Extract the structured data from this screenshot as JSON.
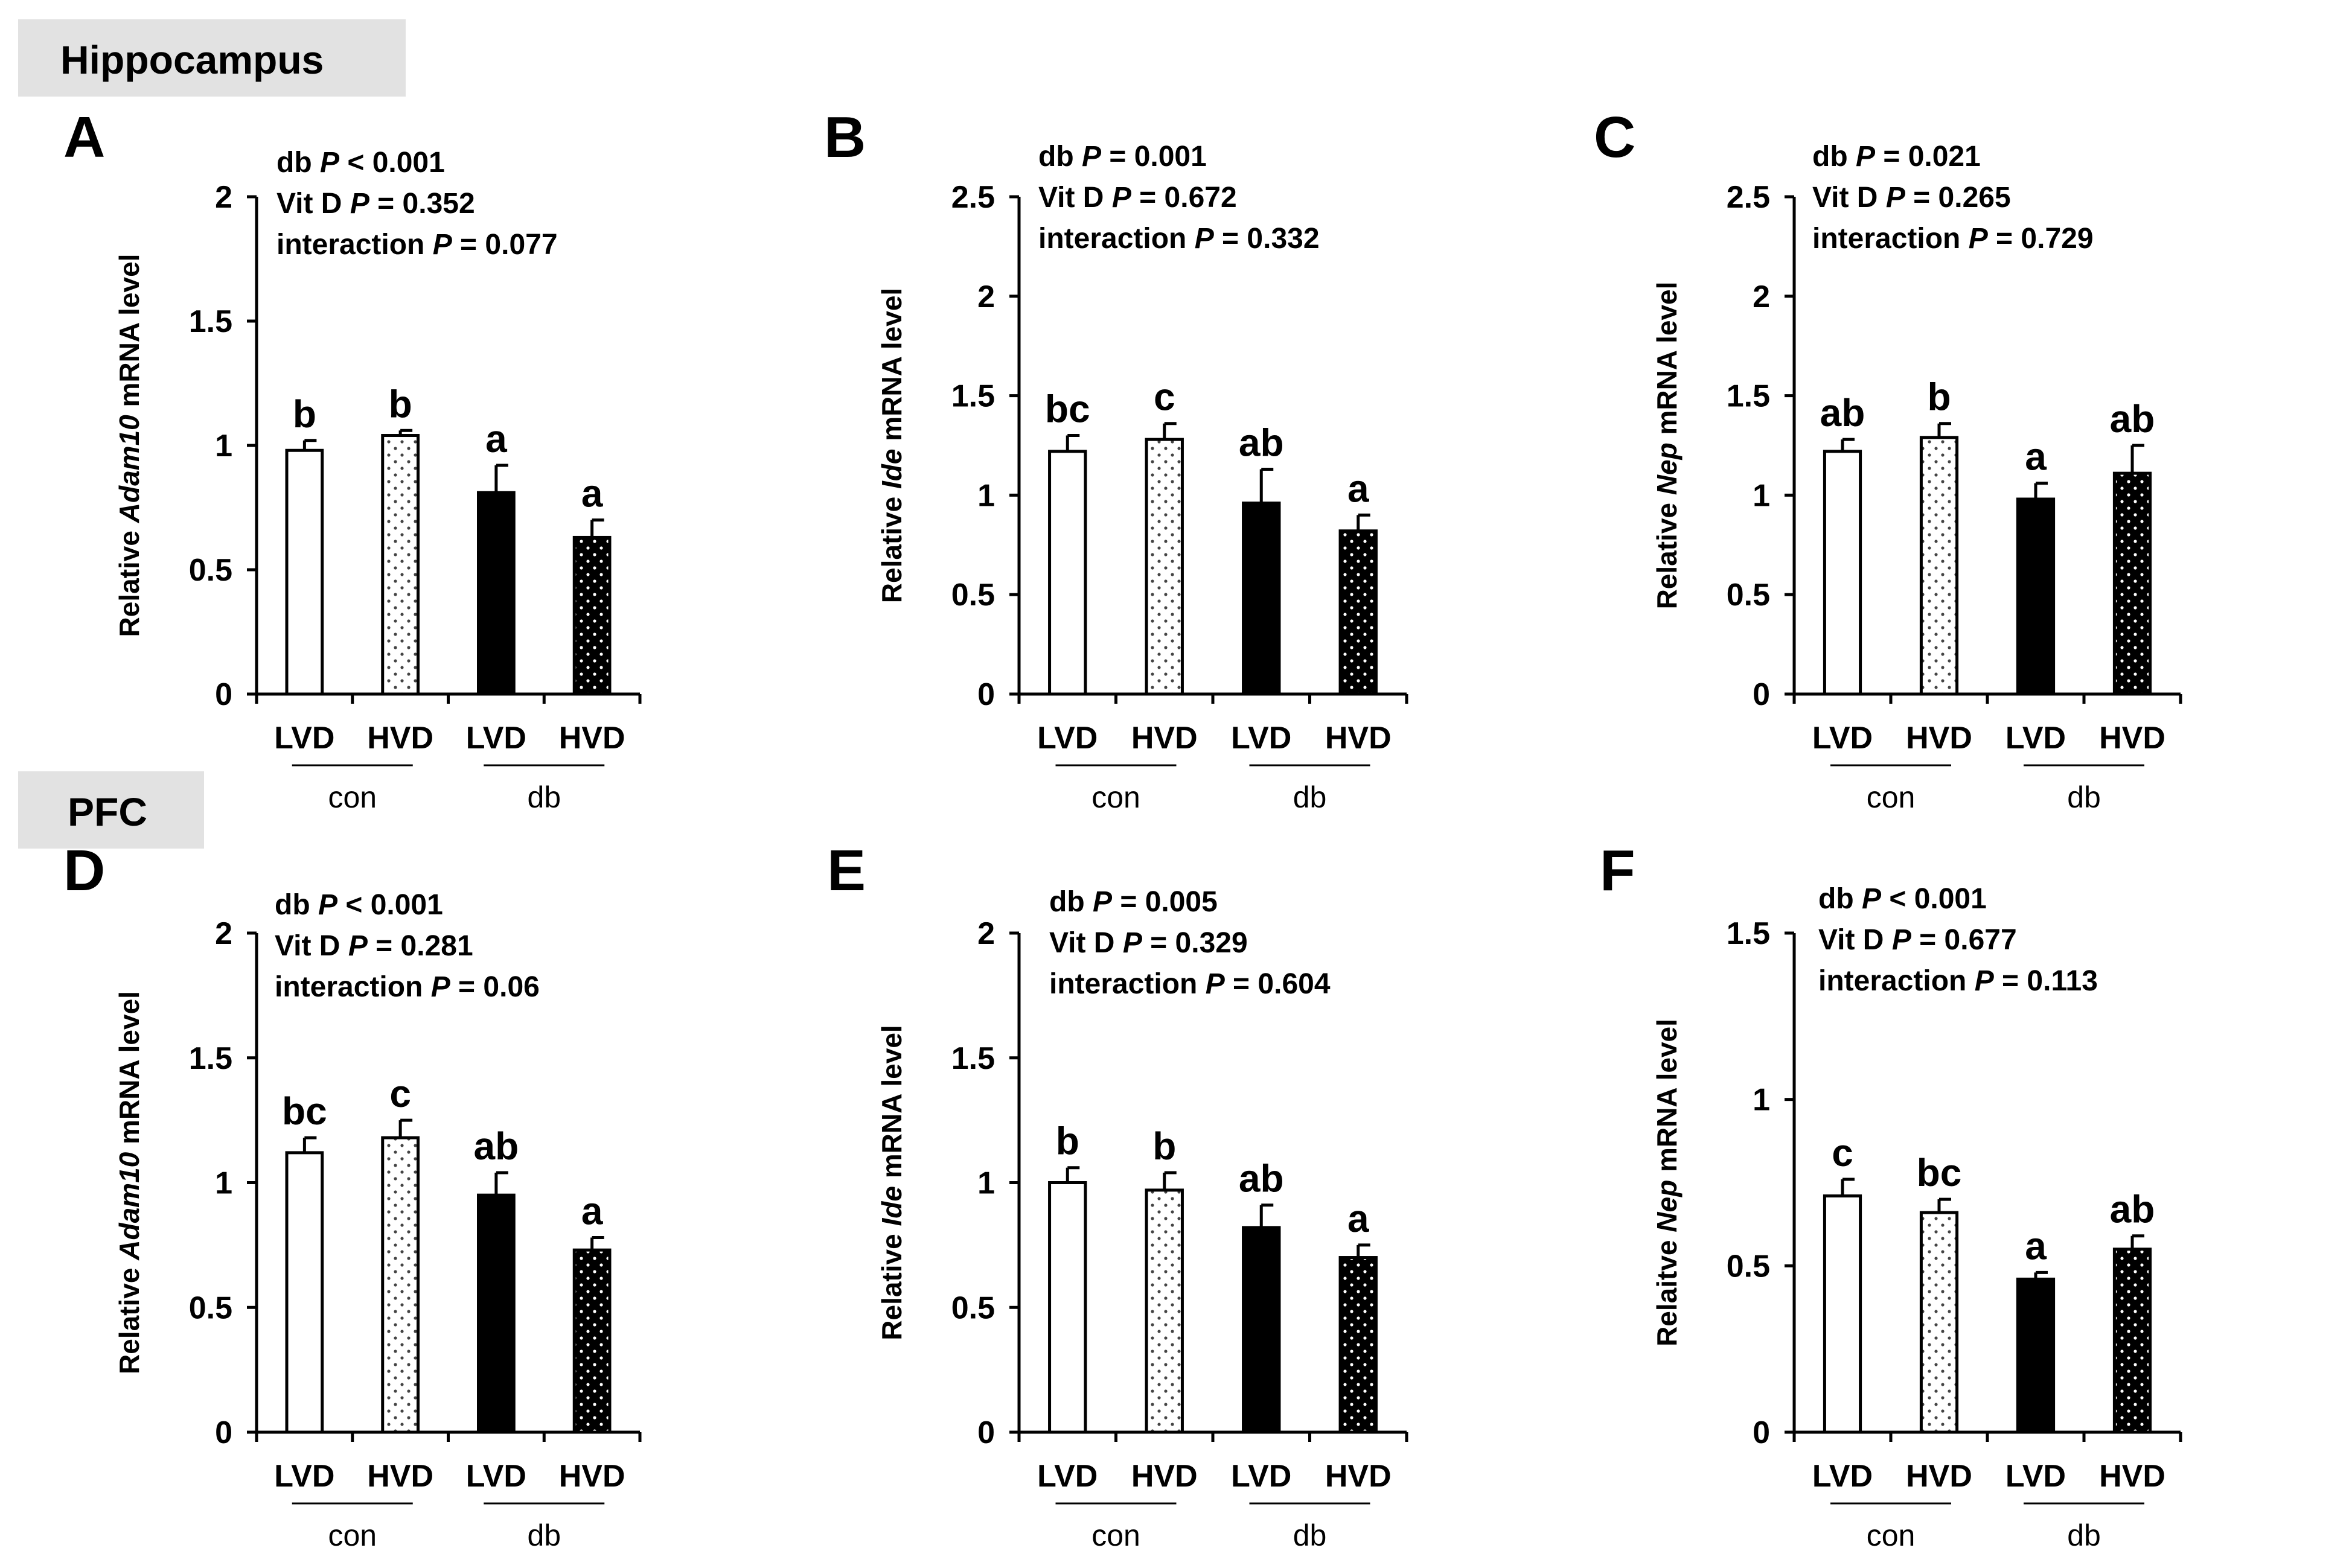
{
  "sections": [
    {
      "label": "Hippocampus"
    },
    {
      "label": "PFC"
    }
  ],
  "palette": {
    "bar_outline": "#000000",
    "bar_black": "#000000",
    "bar_white": "#ffffff",
    "section_bg": "#e2e2e2"
  },
  "chart_data": [
    {
      "type": "bar",
      "panel": "A",
      "ylabel_parts": [
        "Relative ",
        "Adam10",
        " mRNA level"
      ],
      "ylim": [
        0,
        2
      ],
      "yticks": [
        0,
        0.5,
        1,
        1.5,
        2
      ],
      "ytick_labels": [
        "0",
        "0.5",
        "1",
        "1.5",
        "2"
      ],
      "categories": [
        "LVD",
        "HVD",
        "LVD",
        "HVD"
      ],
      "groups": [
        {
          "label": "con"
        },
        {
          "label": "db"
        }
      ],
      "fills": [
        "white",
        "dotted-white",
        "black",
        "dotted-black"
      ],
      "values": [
        0.98,
        1.04,
        0.81,
        0.63
      ],
      "errors": [
        0.04,
        0.02,
        0.11,
        0.07
      ],
      "sig_letters": [
        "b",
        "b",
        "a",
        "a"
      ],
      "stats": [
        {
          "label": "db ",
          "p_symbol": "P",
          "rel": " < ",
          "value": "0.001"
        },
        {
          "label": "Vit D ",
          "p_symbol": "P",
          "rel": " = ",
          "value": "0.352"
        },
        {
          "label": "interaction ",
          "p_symbol": "P",
          "rel": " = ",
          "value": "0.077"
        }
      ]
    },
    {
      "type": "bar",
      "panel": "B",
      "ylabel_parts": [
        "Relative ",
        "Ide",
        " mRNA level"
      ],
      "ylim": [
        0,
        2.5
      ],
      "yticks": [
        0,
        0.5,
        1,
        1.5,
        2,
        2.5
      ],
      "ytick_labels": [
        "0",
        "0.5",
        "1",
        "1.5",
        "2",
        "2.5"
      ],
      "categories": [
        "LVD",
        "HVD",
        "LVD",
        "HVD"
      ],
      "groups": [
        {
          "label": "con"
        },
        {
          "label": "db"
        }
      ],
      "fills": [
        "white",
        "dotted-white",
        "black",
        "dotted-black"
      ],
      "values": [
        1.22,
        1.28,
        0.96,
        0.82
      ],
      "errors": [
        0.08,
        0.08,
        0.17,
        0.08
      ],
      "sig_letters": [
        "bc",
        "c",
        "ab",
        "a"
      ],
      "stats": [
        {
          "label": "db ",
          "p_symbol": "P",
          "rel": " = ",
          "value": "0.001"
        },
        {
          "label": "Vit D ",
          "p_symbol": "P",
          "rel": " = ",
          "value": "0.672"
        },
        {
          "label": "interaction ",
          "p_symbol": "P",
          "rel": " = ",
          "value": "0.332"
        }
      ]
    },
    {
      "type": "bar",
      "panel": "C",
      "ylabel_parts": [
        "Relative ",
        "Nep",
        " mRNA level"
      ],
      "ylim": [
        0,
        2.5
      ],
      "yticks": [
        0,
        0.5,
        1,
        1.5,
        2,
        2.5
      ],
      "ytick_labels": [
        "0",
        "0.5",
        "1",
        "1.5",
        "2",
        "2.5"
      ],
      "categories": [
        "LVD",
        "HVD",
        "LVD",
        "HVD"
      ],
      "groups": [
        {
          "label": "con"
        },
        {
          "label": "db"
        }
      ],
      "fills": [
        "white",
        "dotted-white",
        "black",
        "dotted-black"
      ],
      "values": [
        1.22,
        1.29,
        0.98,
        1.11
      ],
      "errors": [
        0.06,
        0.07,
        0.08,
        0.14
      ],
      "sig_letters": [
        "ab",
        "b",
        "a",
        "ab"
      ],
      "stats": [
        {
          "label": "db ",
          "p_symbol": "P",
          "rel": " = ",
          "value": "0.021"
        },
        {
          "label": "Vit D ",
          "p_symbol": "P",
          "rel": " = ",
          "value": "0.265"
        },
        {
          "label": "interaction ",
          "p_symbol": "P",
          "rel": " = ",
          "value": "0.729"
        }
      ]
    },
    {
      "type": "bar",
      "panel": "D",
      "ylabel_parts": [
        "Relative ",
        "Adam10",
        " mRNA level"
      ],
      "ylim": [
        0,
        2
      ],
      "yticks": [
        0,
        0.5,
        1,
        1.5,
        2
      ],
      "ytick_labels": [
        "0",
        "0.5",
        "1",
        "1.5",
        "2"
      ],
      "categories": [
        "LVD",
        "HVD",
        "LVD",
        "HVD"
      ],
      "groups": [
        {
          "label": "con"
        },
        {
          "label": "db"
        }
      ],
      "fills": [
        "white",
        "dotted-white",
        "black",
        "dotted-black"
      ],
      "values": [
        1.12,
        1.18,
        0.95,
        0.73
      ],
      "errors": [
        0.06,
        0.07,
        0.09,
        0.05
      ],
      "sig_letters": [
        "bc",
        "c",
        "ab",
        "a"
      ],
      "stats": [
        {
          "label": "db ",
          "p_symbol": "P",
          "rel": " < ",
          "value": "0.001"
        },
        {
          "label": "Vit D ",
          "p_symbol": "P",
          "rel": " = ",
          "value": "0.281"
        },
        {
          "label": "interaction ",
          "p_symbol": "P",
          "rel": " = ",
          "value": "0.06"
        }
      ]
    },
    {
      "type": "bar",
      "panel": "E",
      "ylabel_parts": [
        "Relative ",
        "Ide",
        " mRNA level"
      ],
      "ylim": [
        0,
        2
      ],
      "yticks": [
        0,
        0.5,
        1,
        1.5,
        2
      ],
      "ytick_labels": [
        "0",
        "0.5",
        "1",
        "1.5",
        "2"
      ],
      "categories": [
        "LVD",
        "HVD",
        "LVD",
        "HVD"
      ],
      "groups": [
        {
          "label": "con"
        },
        {
          "label": "db"
        }
      ],
      "fills": [
        "white",
        "dotted-white",
        "black",
        "dotted-black"
      ],
      "values": [
        1.0,
        0.97,
        0.82,
        0.7
      ],
      "errors": [
        0.06,
        0.07,
        0.09,
        0.05
      ],
      "sig_letters": [
        "b",
        "b",
        "ab",
        "a"
      ],
      "stats": [
        {
          "label": "db ",
          "p_symbol": "P",
          "rel": " = ",
          "value": "0.005"
        },
        {
          "label": "Vit D ",
          "p_symbol": "P",
          "rel": " = ",
          "value": "0.329"
        },
        {
          "label": "interaction ",
          "p_symbol": "P",
          "rel": " = ",
          "value": "0.604"
        }
      ]
    },
    {
      "type": "bar",
      "panel": "F",
      "ylabel_parts": [
        "Relaitve ",
        "Nep",
        " mRNA level"
      ],
      "ylim": [
        0,
        1.5
      ],
      "yticks": [
        0,
        0.5,
        1,
        1.5
      ],
      "ytick_labels": [
        "0",
        "0.5",
        "1",
        "1.5"
      ],
      "categories": [
        "LVD",
        "HVD",
        "LVD",
        "HVD"
      ],
      "groups": [
        {
          "label": "con"
        },
        {
          "label": "db"
        }
      ],
      "fills": [
        "white",
        "dotted-white",
        "black",
        "dotted-black"
      ],
      "values": [
        0.71,
        0.66,
        0.46,
        0.55
      ],
      "errors": [
        0.05,
        0.04,
        0.02,
        0.04
      ],
      "sig_letters": [
        "c",
        "bc",
        "a",
        "ab"
      ],
      "stats": [
        {
          "label": "db ",
          "p_symbol": "P",
          "rel": " < ",
          "value": "0.001"
        },
        {
          "label": "Vit D ",
          "p_symbol": "P",
          "rel": " = ",
          "value": "0.677"
        },
        {
          "label": "interaction ",
          "p_symbol": "P",
          "rel": " = ",
          "value": "0.113"
        }
      ]
    }
  ]
}
